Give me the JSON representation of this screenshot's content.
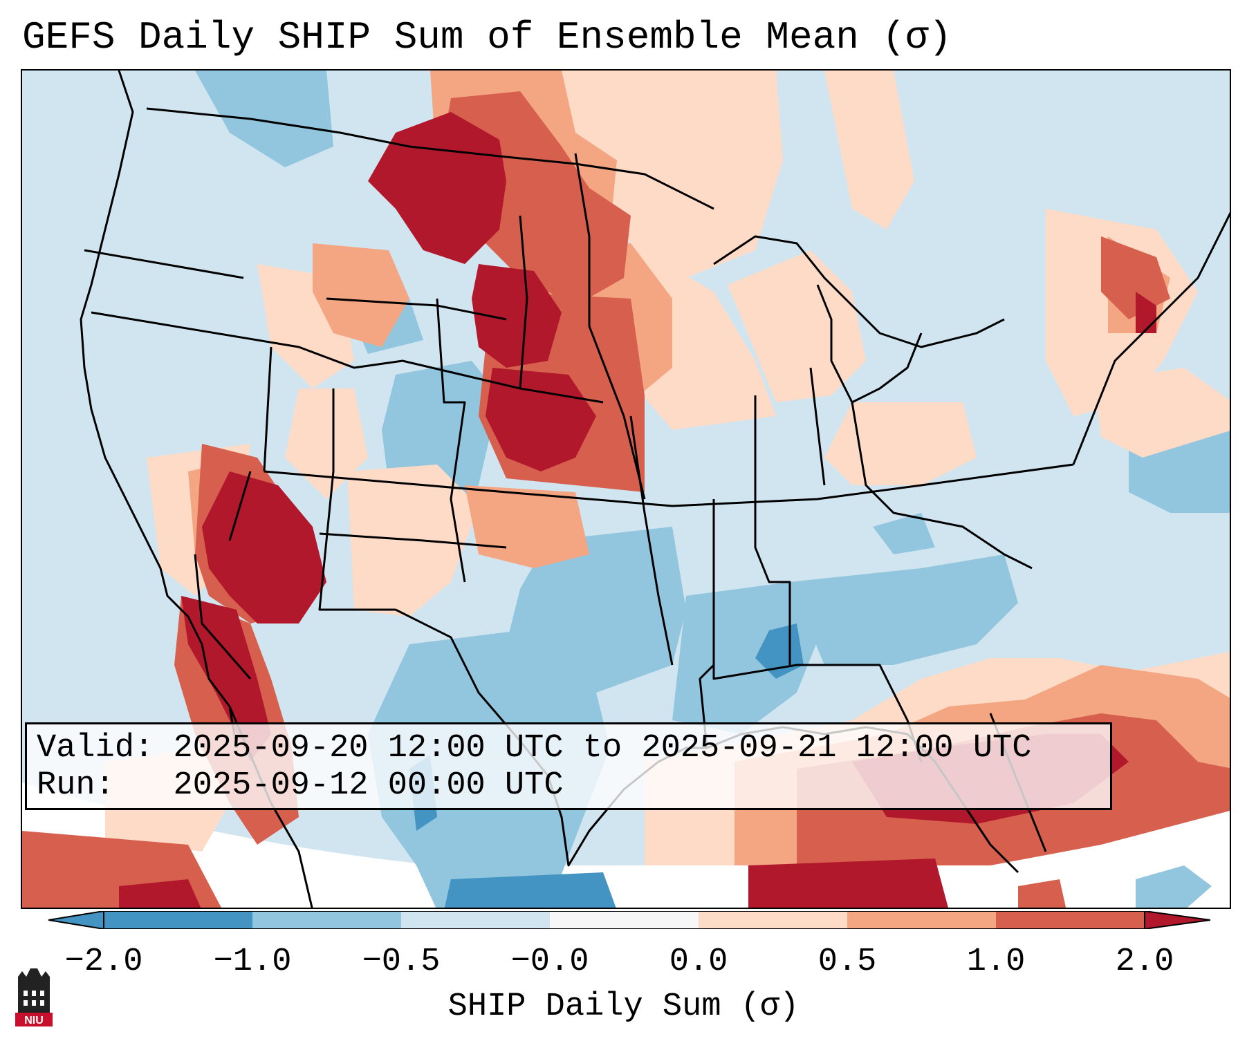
{
  "title": "GEFS Daily SHIP Sum of Ensemble Mean (σ)",
  "info": {
    "valid_label": "Valid:",
    "valid_value": "2025-09-20 12:00 UTC to 2025-09-21 12:00 UTC",
    "run_label": "Run:",
    "run_value": "2025-09-12 00:00 UTC"
  },
  "colorbar": {
    "label": "SHIP Daily Sum (σ)",
    "ticks": [
      "−2.0",
      "−1.0",
      "−0.5",
      "−0.0",
      "0.0",
      "0.5",
      "1.0",
      "2.0"
    ],
    "bins": [
      {
        "range": "< -2.0",
        "color": "#4393c3"
      },
      {
        "range": "-2.0 to -1.0",
        "color": "#4393c3"
      },
      {
        "range": "-1.0 to -0.5",
        "color": "#92c5de"
      },
      {
        "range": "-0.5 to -0.0",
        "color": "#d1e5f0"
      },
      {
        "range": "-0.0 to 0.0",
        "color": "#f7f7f7"
      },
      {
        "range": "0.0 to 0.5",
        "color": "#fddbc7"
      },
      {
        "range": "0.5 to 1.0",
        "color": "#f4a582"
      },
      {
        "range": "1.0 to 2.0",
        "color": "#d6604d"
      },
      {
        "range": "> 2.0",
        "color": "#b2182b"
      }
    ]
  },
  "logo": {
    "text": "NIU",
    "color": "#c8102e"
  },
  "colors": {
    "strong_neg": "#4393c3",
    "neg": "#92c5de",
    "weak_neg": "#d1e5f0",
    "weak_pos": "#fddbc7",
    "pos": "#f4a582",
    "strong_pos": "#d6604d",
    "extreme_pos": "#b2182b"
  }
}
